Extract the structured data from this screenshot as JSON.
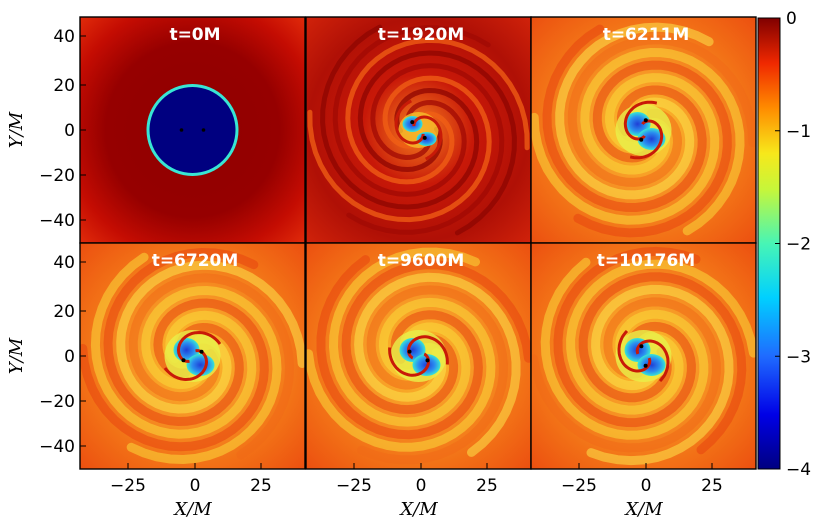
{
  "figure": {
    "panels": [
      {
        "title": "t=0M",
        "state": "initial-disk"
      },
      {
        "title": "t=1920M",
        "state": "early-spiral"
      },
      {
        "title": "t=6211M",
        "state": "spiral"
      },
      {
        "title": "t=6720M",
        "state": "spiral"
      },
      {
        "title": "t=9600M",
        "state": "spiral"
      },
      {
        "title": "t=10176M",
        "state": "spiral"
      }
    ],
    "x_axis": {
      "label": "X/M",
      "ticks": [
        "−25",
        "0",
        "25"
      ]
    },
    "y_axis": {
      "label": "Y/M",
      "ticks": [
        "40",
        "20",
        "0",
        "−20",
        "−40"
      ]
    },
    "colorbar": {
      "ticks": [
        "0",
        "−1",
        "−2",
        "−3",
        "−4"
      ],
      "min": -4,
      "max": 0
    },
    "colors": {
      "dark-red": "#8b0000",
      "red": "#e8180a",
      "orange": "#f57b12",
      "yellow": "#f9e81c",
      "cyan": "#38e6d4",
      "blue": "#1f3fd6",
      "navy": "#000080"
    }
  }
}
